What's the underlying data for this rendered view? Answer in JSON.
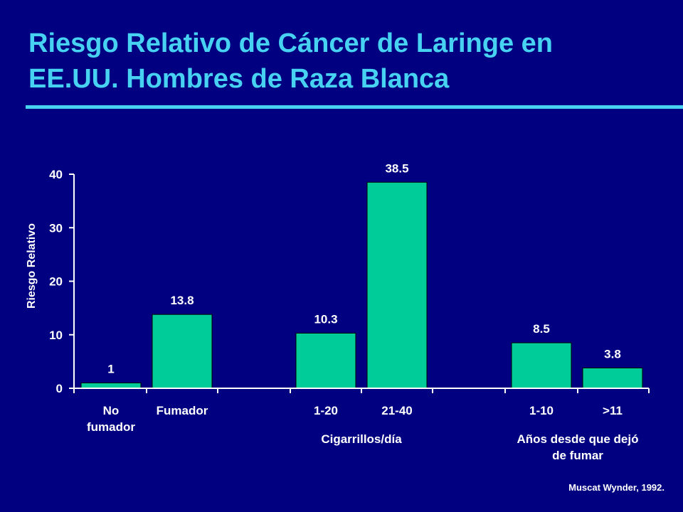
{
  "slide": {
    "title_line1": "Riesgo Relativo de Cáncer de Laringe en",
    "title_line2": "EE.UU. Hombres de Raza Blanca",
    "source": "Muscat Wynder, 1992."
  },
  "colors": {
    "background": "#000080",
    "title": "#46d2f0",
    "bar": "#00cc99",
    "text": "#ffffff"
  },
  "chart_data": {
    "type": "bar",
    "ylabel": "Riesgo Relativo",
    "ylim": [
      0,
      40
    ],
    "yticks": [
      "0",
      "10",
      "20",
      "30",
      "40"
    ],
    "categories": [
      [
        "No",
        "fumador"
      ],
      [
        "Fumador"
      ],
      [
        "1-20"
      ],
      [
        "21-40"
      ],
      [
        "1-10"
      ],
      [
        ">11"
      ]
    ],
    "values": [
      1,
      13.8,
      10.3,
      38.5,
      8.5,
      3.8
    ],
    "value_labels": [
      "1",
      "13.8",
      "10.3",
      "38.5",
      "8.5",
      "3.8"
    ],
    "groups": [
      {
        "label": [
          "Cigarrillos/día"
        ],
        "categories": [
          "1-20",
          "21-40"
        ]
      },
      {
        "label": [
          "Años desde que dejó",
          "de fumar"
        ],
        "categories": [
          "1-10",
          ">11"
        ]
      }
    ],
    "grid": false,
    "legend": "none"
  }
}
